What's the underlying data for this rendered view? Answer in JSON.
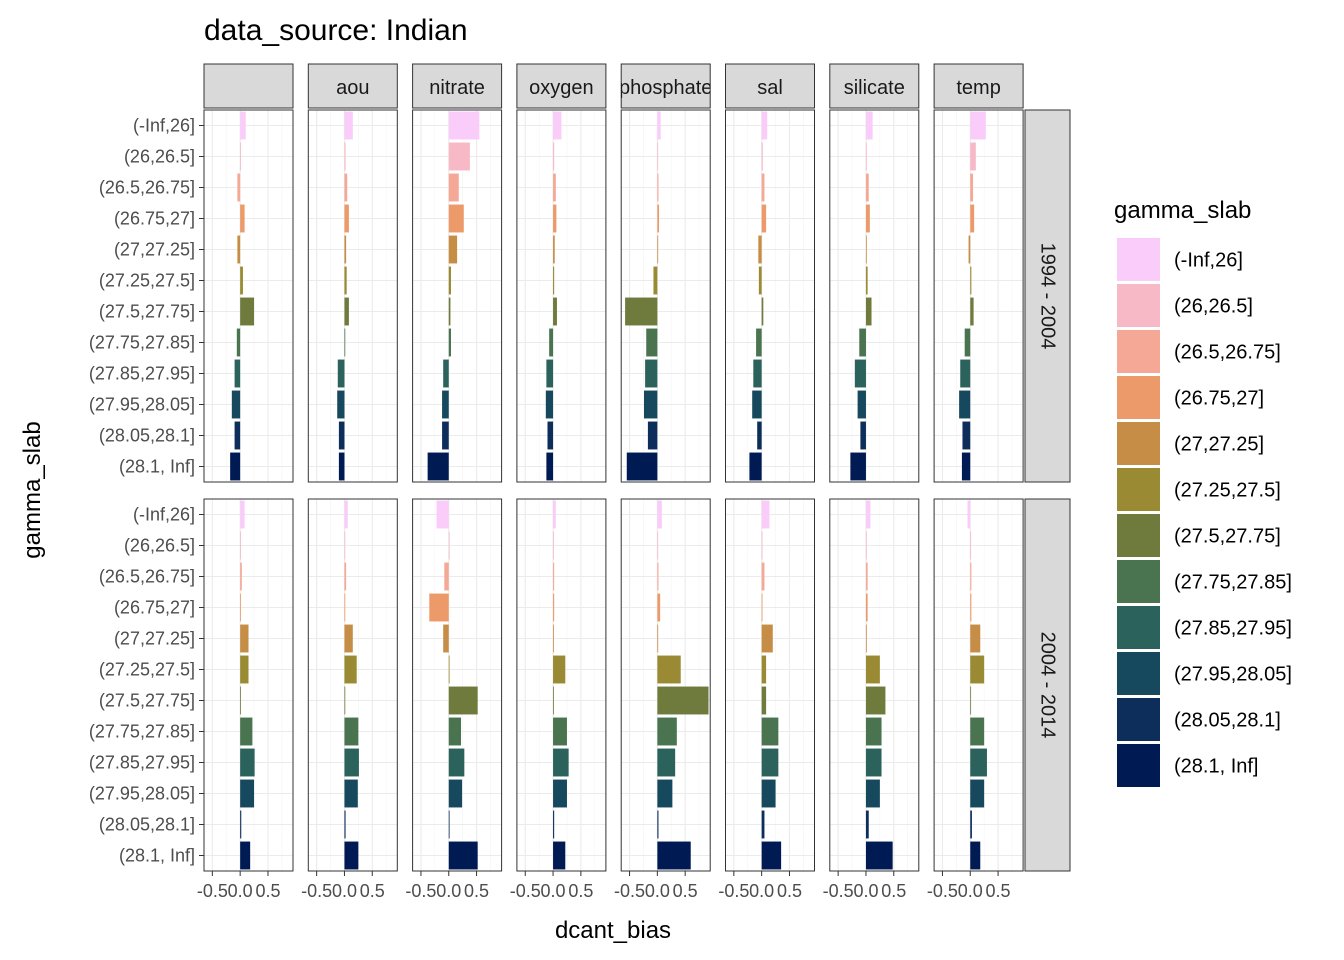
{
  "chart_data": {
    "type": "bar",
    "orientation": "horizontal",
    "title": "data_source: Indian",
    "xlabel": "dcant_bias",
    "ylabel": "gamma_slab",
    "xlim": [
      -0.65,
      0.95
    ],
    "x_ticks": [
      -0.5,
      0.0,
      0.5
    ],
    "x_tick_labels": [
      "-0.5",
      "0.0",
      "0.5"
    ],
    "grid": true,
    "legend": {
      "title": "gamma_slab",
      "placement": "right"
    },
    "categories": [
      "(-Inf,26]",
      "(26,26.5]",
      "(26.5,26.75]",
      "(26.75,27]",
      "(27,27.25]",
      "(27.25,27.5]",
      "(27.5,27.75]",
      "(27.75,27.85]",
      "(27.85,27.95]",
      "(27.95,28.05]",
      "(28.05,28.1]",
      "(28.1, Inf]"
    ],
    "colors": [
      "#f9ccf9",
      "#f7b9c6",
      "#f5a895",
      "#ec9a6a",
      "#c68d46",
      "#9a8a33",
      "#6e7b3d",
      "#4a7350",
      "#2b625b",
      "#16485e",
      "#0d2d5b",
      "#001b54"
    ],
    "column_facets": [
      "",
      "aou",
      "nitrate",
      "oxygen",
      "phosphate",
      "sal",
      "silicate",
      "temp"
    ],
    "row_facets": [
      "1994 - 2004",
      "2004 - 2014"
    ],
    "values": {
      "1994 - 2004": {
        "": [
          0.1,
          0.0,
          -0.05,
          0.08,
          -0.05,
          0.05,
          0.25,
          -0.06,
          -0.1,
          -0.15,
          -0.1,
          -0.18
        ],
        "aou": [
          0.15,
          0.02,
          0.05,
          0.08,
          0.03,
          0.04,
          0.08,
          0.0,
          -0.12,
          -0.13,
          -0.1,
          -0.1
        ],
        "nitrate": [
          0.55,
          0.38,
          0.18,
          0.27,
          0.15,
          0.04,
          0.03,
          0.04,
          -0.1,
          -0.12,
          -0.12,
          -0.38
        ],
        "oxygen": [
          0.15,
          0.02,
          0.05,
          0.06,
          0.03,
          0.02,
          0.07,
          -0.07,
          -0.12,
          -0.13,
          -0.1,
          -0.12
        ],
        "phosphate": [
          0.06,
          0.01,
          0.02,
          0.03,
          0.0,
          -0.07,
          -0.58,
          -0.2,
          -0.22,
          -0.24,
          -0.17,
          -0.55
        ],
        "sal": [
          0.1,
          0.02,
          0.05,
          0.08,
          -0.06,
          -0.05,
          0.03,
          -0.1,
          -0.15,
          -0.17,
          -0.08,
          -0.22
        ],
        "silicate": [
          0.12,
          0.01,
          0.05,
          0.07,
          0.0,
          0.03,
          0.1,
          -0.12,
          -0.2,
          -0.15,
          -0.1,
          -0.28
        ],
        "temp": [
          0.28,
          0.1,
          0.05,
          0.07,
          -0.03,
          0.02,
          0.06,
          -0.1,
          -0.18,
          -0.2,
          -0.14,
          -0.15
        ]
      },
      "2004 - 2014": {
        "": [
          0.08,
          0.0,
          0.03,
          0.0,
          0.15,
          0.15,
          0.0,
          0.22,
          0.26,
          0.25,
          0.02,
          0.18
        ],
        "aou": [
          0.06,
          0.0,
          0.03,
          0.0,
          0.15,
          0.22,
          0.0,
          0.25,
          0.26,
          0.24,
          0.02,
          0.25
        ],
        "nitrate": [
          -0.22,
          0.0,
          -0.08,
          -0.35,
          -0.1,
          0.0,
          0.52,
          0.22,
          0.28,
          0.24,
          0.0,
          0.52
        ],
        "oxygen": [
          0.05,
          0.0,
          0.02,
          0.02,
          0.0,
          0.22,
          0.0,
          0.25,
          0.28,
          0.25,
          0.02,
          0.22
        ],
        "phosphate": [
          0.08,
          0.0,
          0.02,
          0.05,
          0.0,
          0.42,
          0.92,
          0.35,
          0.32,
          0.27,
          0.02,
          0.6
        ],
        "sal": [
          0.14,
          0.0,
          0.05,
          0.0,
          0.2,
          0.08,
          0.08,
          0.3,
          0.3,
          0.25,
          0.05,
          0.35
        ],
        "silicate": [
          0.08,
          0.0,
          0.03,
          0.03,
          0.0,
          0.25,
          0.35,
          0.28,
          0.28,
          0.25,
          0.05,
          0.48
        ],
        "temp": [
          -0.05,
          0.0,
          0.02,
          0.02,
          0.18,
          0.25,
          0.0,
          0.25,
          0.3,
          0.25,
          0.03,
          0.18
        ]
      }
    }
  }
}
